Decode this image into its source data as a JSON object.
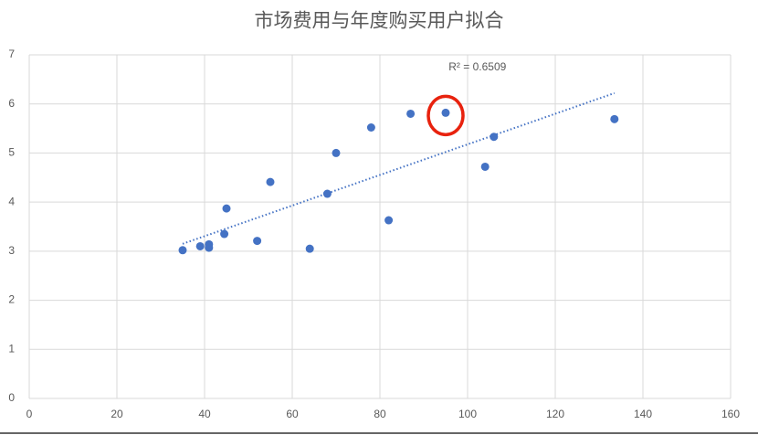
{
  "chart_data": {
    "type": "scatter",
    "title": "市场费用与年度购买用户拟合",
    "x": [
      35,
      39,
      41,
      41,
      44.5,
      45,
      52,
      55,
      64,
      68,
      70,
      78,
      82,
      87,
      95,
      104,
      106,
      133.5
    ],
    "values": [
      3.02,
      3.1,
      3.14,
      3.07,
      3.35,
      3.87,
      3.21,
      4.41,
      3.05,
      4.17,
      5.0,
      5.52,
      3.63,
      5.8,
      5.82,
      4.72,
      5.33,
      5.69
    ],
    "color": "#4472c4",
    "xlim": [
      0,
      160
    ],
    "xticks": [
      0,
      20,
      40,
      60,
      80,
      100,
      120,
      140,
      160
    ],
    "ylim": [
      0,
      7
    ],
    "yticks": [
      0,
      1,
      2,
      3,
      4,
      5,
      6,
      7
    ],
    "grid": true,
    "trendline": {
      "x": [
        35,
        133.5
      ],
      "values": [
        3.15,
        6.22
      ],
      "label": "R² = 0.6509",
      "color": "#4472c4"
    },
    "highlight_index": 14,
    "highlight_color": "#e8220e"
  }
}
